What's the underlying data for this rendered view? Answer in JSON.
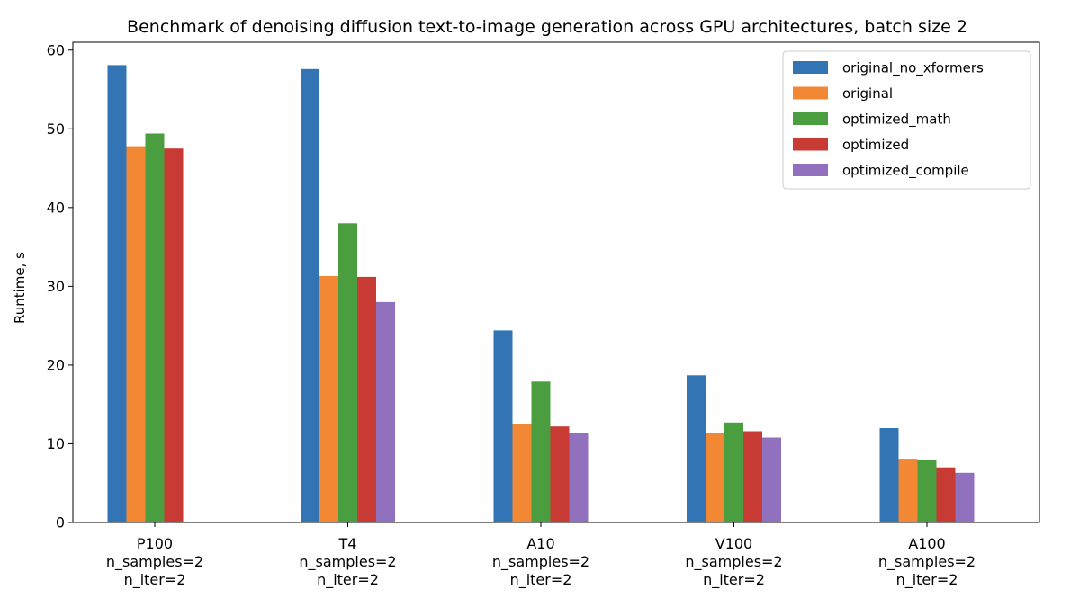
{
  "chart_data": {
    "type": "bar",
    "title": "Benchmark of denoising diffusion text-to-image generation across GPU architectures, batch size 2",
    "xlabel": "",
    "ylabel": "Runtime, s",
    "ylim": [
      0,
      61
    ],
    "yticks": [
      0,
      10,
      20,
      30,
      40,
      50,
      60
    ],
    "grid": false,
    "legend_position": "top-right",
    "categories": [
      [
        "P100",
        "n_samples=2",
        "n_iter=2"
      ],
      [
        "T4",
        "n_samples=2",
        "n_iter=2"
      ],
      [
        "A10",
        "n_samples=2",
        "n_iter=2"
      ],
      [
        "V100",
        "n_samples=2",
        "n_iter=2"
      ],
      [
        "A100",
        "n_samples=2",
        "n_iter=2"
      ]
    ],
    "series": [
      {
        "name": "original_no_xformers",
        "color": "#3274b4",
        "values": [
          58.1,
          57.6,
          24.4,
          18.7,
          12.0
        ]
      },
      {
        "name": "original",
        "color": "#f28734",
        "values": [
          47.8,
          31.3,
          12.5,
          11.4,
          8.1
        ]
      },
      {
        "name": "optimized_math",
        "color": "#4a9e3f",
        "values": [
          49.4,
          38.0,
          17.9,
          12.7,
          7.9
        ]
      },
      {
        "name": "optimized",
        "color": "#c83a34",
        "values": [
          47.5,
          31.2,
          12.2,
          11.6,
          7.0
        ]
      },
      {
        "name": "optimized_compile",
        "color": "#9170bd",
        "values": [
          null,
          28.0,
          11.4,
          10.8,
          6.3
        ]
      }
    ]
  }
}
